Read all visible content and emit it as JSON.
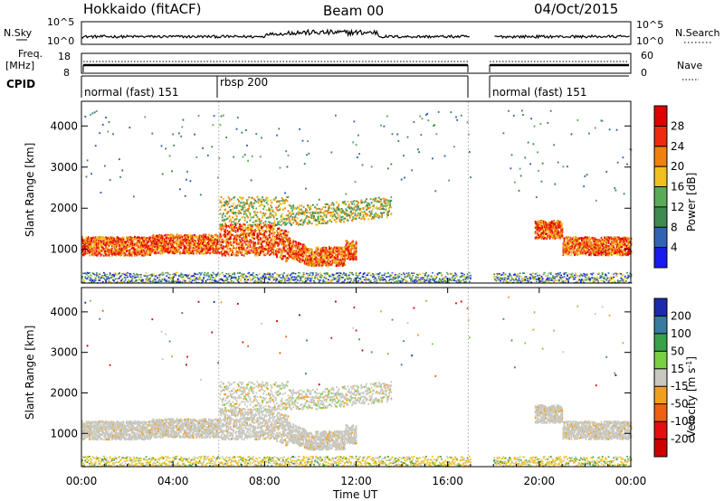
{
  "header": {
    "station": "Hokkaido (fitACF)",
    "beam": "Beam 00",
    "date": "04/Oct/2015"
  },
  "noise_panel": {
    "left_label": "N.Sky",
    "left_ticks": [
      "10^5",
      "10^0"
    ],
    "right_ticks": [
      "10^5",
      "10^0"
    ],
    "right_label": "N.Search"
  },
  "freq_panel": {
    "left_label_1": "Freq.",
    "left_label_2": "[MHz]",
    "left_ticks": [
      "18",
      "8"
    ],
    "right_ticks": [
      "60",
      "0"
    ],
    "right_label": "Nave"
  },
  "cpid_panel": {
    "label": "CPID",
    "segments": [
      "normal (fast) 151",
      "rbsp 200",
      "normal (fast) 151"
    ]
  },
  "chart_data": [
    {
      "type": "heatmap",
      "name": "power",
      "ylabel": "Slant Range [km]",
      "y_ticks": [
        "1000",
        "2000",
        "3000",
        "4000"
      ],
      "ylim_km": [
        180,
        4600
      ],
      "xlim_hours": [
        0,
        24
      ],
      "data_gap_hours": [
        17.0,
        18.0
      ],
      "colorbar": {
        "label": "Power [dB]",
        "ticks": [
          "4",
          "8",
          "12",
          "16",
          "20",
          "24",
          "28"
        ],
        "range": [
          0,
          32
        ],
        "colors": [
          "#1a1aee",
          "#2f64b4",
          "#3e8a50",
          "#5aaa5a",
          "#f0c020",
          "#f08010",
          "#ee2a10",
          "#dd0000"
        ]
      }
    },
    {
      "type": "heatmap",
      "name": "velocity",
      "ylabel": "Slant Range [km]",
      "y_ticks": [
        "1000",
        "2000",
        "3000",
        "4000"
      ],
      "ylim_km": [
        180,
        4600
      ],
      "xlim_hours": [
        0,
        24
      ],
      "data_gap_hours": [
        17.0,
        18.0
      ],
      "colorbar": {
        "label": "Velocity [m s^-1]",
        "ticks": [
          "200",
          "100",
          "50",
          "15",
          "-15",
          "-50",
          "-100",
          "-200"
        ],
        "colors": [
          "#1a2aaa",
          "#3a7aa0",
          "#3aa04a",
          "#7ad040",
          "#c8c8c0",
          "#f0a020",
          "#f06010",
          "#e01010",
          "#cc0000"
        ]
      }
    }
  ],
  "xaxis": {
    "ticks": [
      "00:00",
      "04:00",
      "08:00",
      "12:00",
      "16:00",
      "20:00",
      "00:00"
    ],
    "label": "Time UT"
  }
}
